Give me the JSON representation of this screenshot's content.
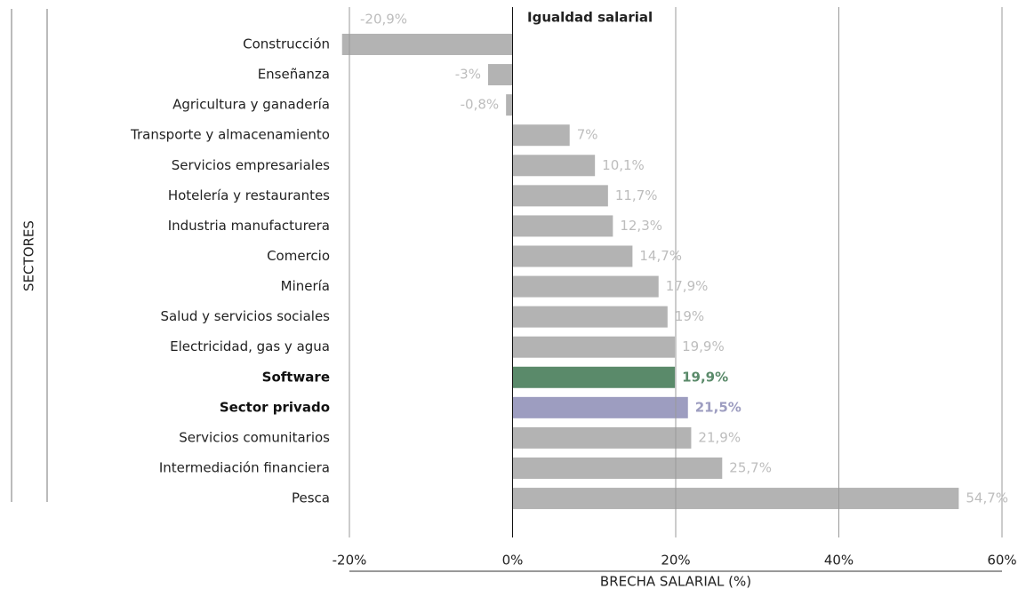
{
  "chart_data": {
    "type": "barh",
    "x_label": "BRECHA SALARIAL (%)",
    "y_label": "SECTORES",
    "annotation": "Igualdad salarial",
    "categories": [
      "Construcción",
      "Enseñanza",
      "Agricultura y ganadería",
      "Transporte y almacenamiento",
      "Servicios empresariales",
      "Hotelería y restaurantes",
      "Industria manufacturera",
      "Comercio",
      "Minería",
      "Salud y servicios sociales",
      "Electricidad, gas y agua",
      "Software",
      "Sector privado",
      "Servicios comunitarios",
      "Intermediación financiera",
      "Pesca"
    ],
    "values": [
      -20.9,
      -3,
      -0.8,
      7,
      10.1,
      11.7,
      12.3,
      14.7,
      17.9,
      19,
      19.9,
      19.9,
      21.5,
      21.9,
      25.7,
      54.7
    ],
    "value_labels": [
      "-20,9%",
      "-3%",
      "-0,8%",
      "7%",
      "10,1%",
      "11,7%",
      "12,3%",
      "14,7%",
      "17,9%",
      "19%",
      "19,9%",
      "19,9%",
      "21,5%",
      "21,9%",
      "25,7%",
      "54,7%"
    ],
    "color": "#b3b3b3",
    "colors": [
      "#b3b3b3",
      "#b3b3b3",
      "#b3b3b3",
      "#b3b3b3",
      "#b3b3b3",
      "#b3b3b3",
      "#b3b3b3",
      "#b3b3b3",
      "#b3b3b3",
      "#b3b3b3",
      "#b3b3b3",
      "#5a8a6a",
      "#9d9dc0",
      "#b3b3b3",
      "#b3b3b3",
      "#b3b3b3"
    ],
    "xlim": [
      -20,
      60
    ],
    "xticks": [
      {
        "value": -20,
        "label": "-20%"
      },
      {
        "value": 0,
        "label": "0%"
      },
      {
        "value": 20,
        "label": "20%"
      },
      {
        "value": 40,
        "label": "40%"
      },
      {
        "value": 60,
        "label": "60%"
      }
    ],
    "grid": true
  }
}
